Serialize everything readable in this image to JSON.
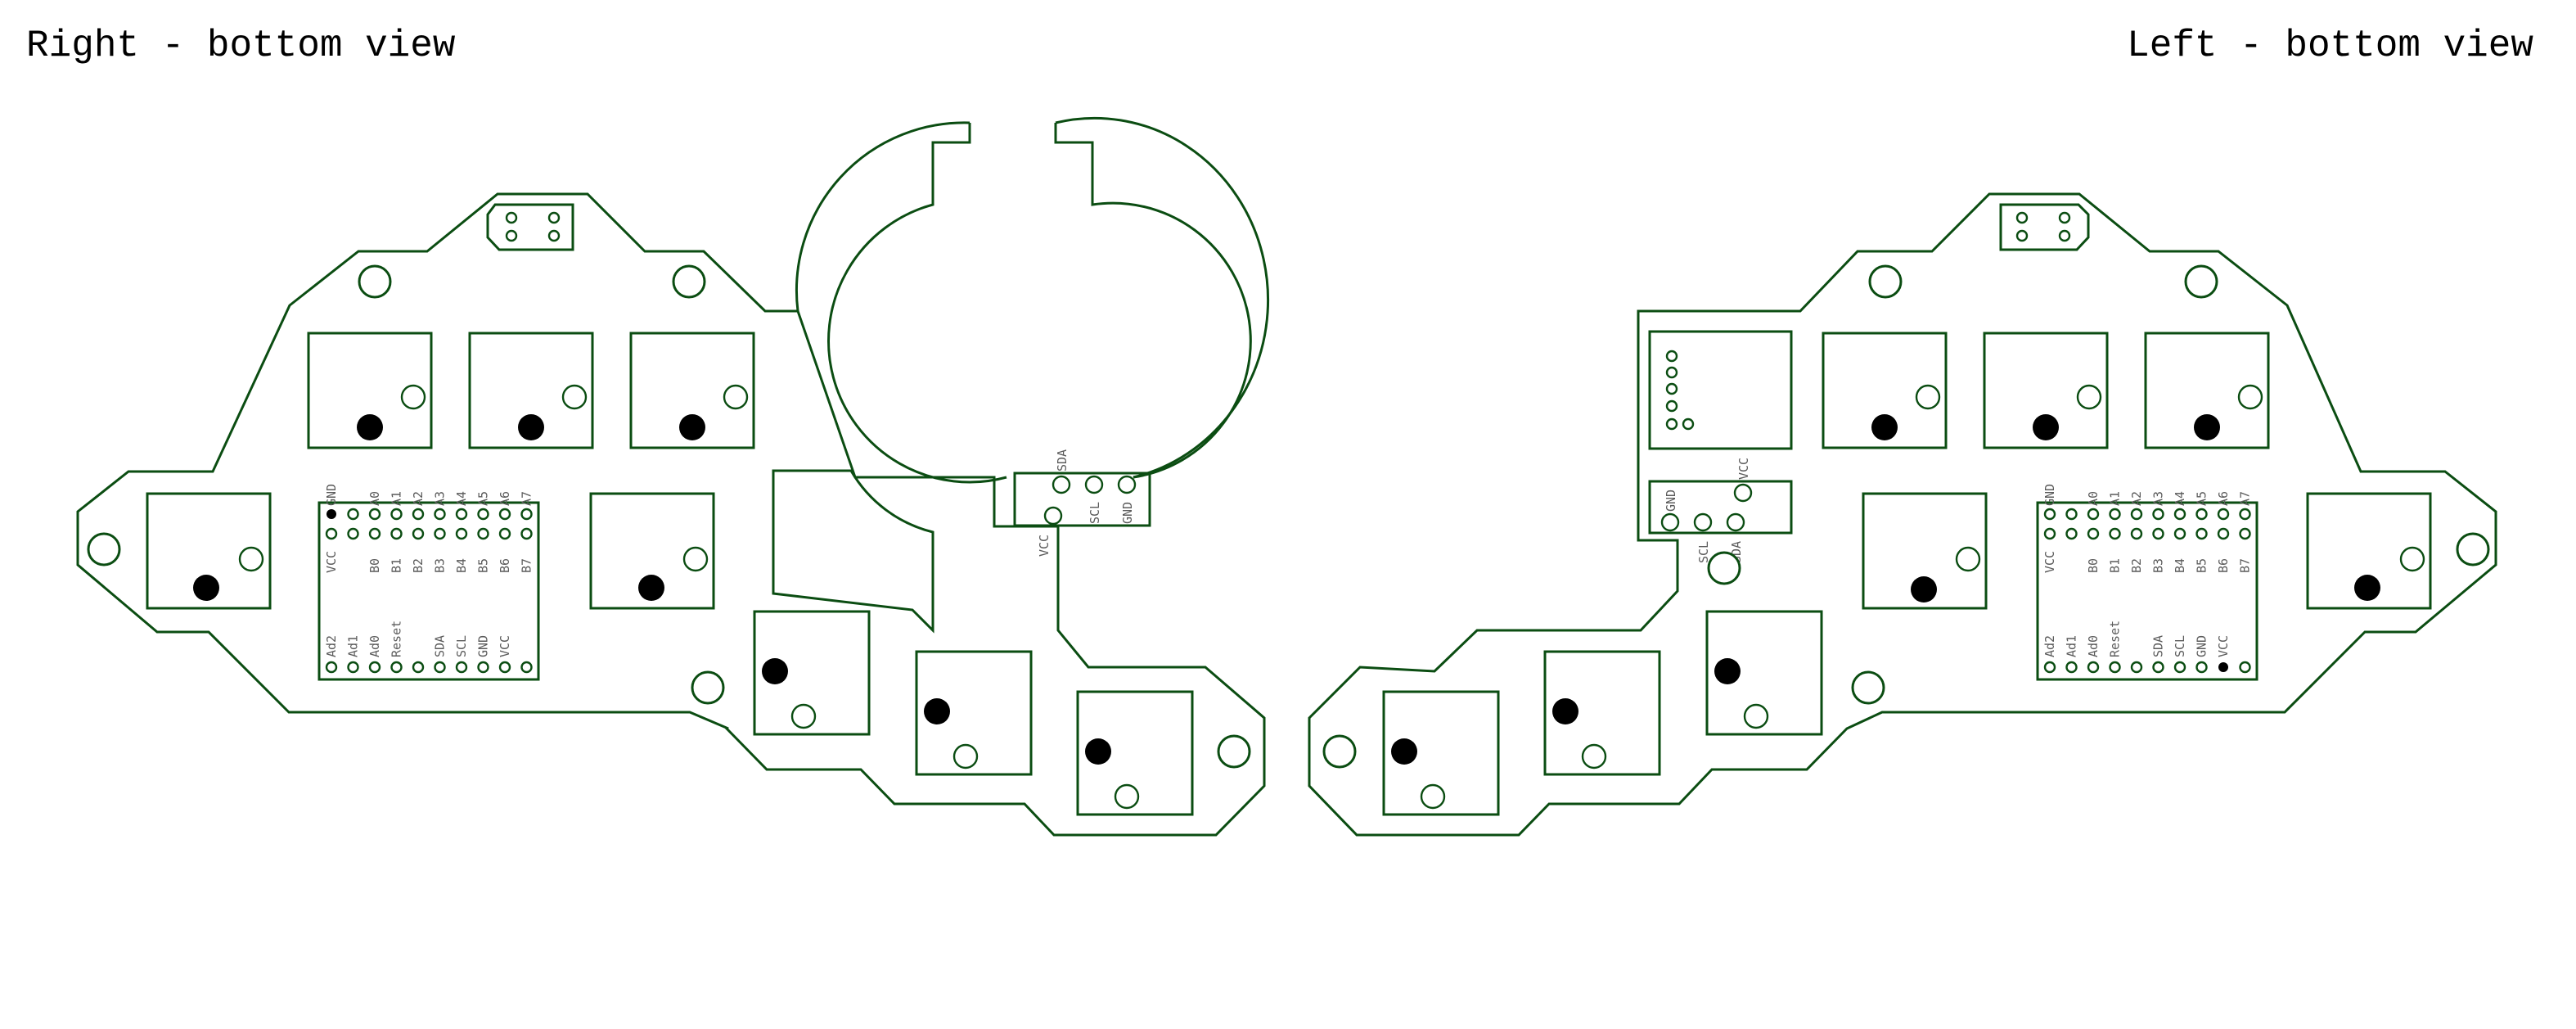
{
  "titles": {
    "right": "Right - bottom view",
    "left": "Left - bottom view"
  },
  "pro_micro_pins": {
    "top_row": [
      "GND",
      "A0",
      "A1",
      "A2",
      "A3",
      "A4",
      "A5",
      "A6",
      "A7"
    ],
    "second_row": [
      "VCC",
      "",
      "B0",
      "B1",
      "B2",
      "B3",
      "B4",
      "B5",
      "B6",
      "B7"
    ],
    "bottom_row": [
      "Ad2",
      "Ad1",
      "Ad0",
      "Reset",
      "",
      "SDA",
      "SCL",
      "GND",
      "VCC"
    ]
  },
  "connectors": {
    "right_i2c": [
      "VCC",
      "SDA",
      "SCL",
      "GND"
    ],
    "left_i2c": [
      "GND",
      "SCL",
      "SDA",
      "VCC"
    ]
  },
  "colors": {
    "outline": "#0b4d12",
    "text": "#5b5b5b"
  }
}
